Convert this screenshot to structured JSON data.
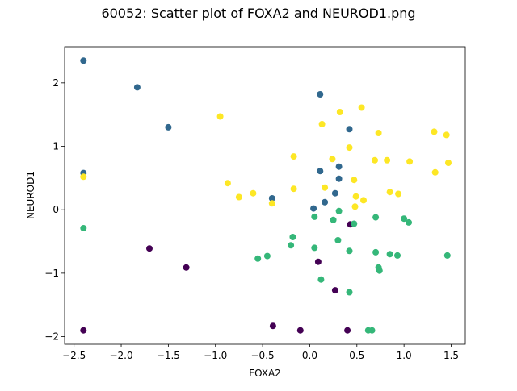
{
  "chart_data": {
    "type": "scatter",
    "title": "60052: Scatter plot of FOXA2 and NEUROD1.png",
    "xlabel": "FOXA2",
    "ylabel": "NEUROD1",
    "xlim": [
      -2.6,
      1.65
    ],
    "ylim": [
      -2.12,
      2.57
    ],
    "xticks": [
      -2.5,
      -2.0,
      -1.5,
      -1.0,
      -0.5,
      0.0,
      0.5,
      1.0,
      1.5
    ],
    "xtick_labels": [
      "−2.5",
      "−2.0",
      "−1.5",
      "−1.0",
      "−0.5",
      "0.0",
      "0.5",
      "1.0",
      "1.5"
    ],
    "yticks": [
      -2,
      -1,
      0,
      1,
      2
    ],
    "ytick_labels": [
      "−2",
      "−1",
      "0",
      "1",
      "2"
    ],
    "grid": false,
    "legend": "none",
    "series": [
      {
        "color": "#440154",
        "points": [
          [
            -2.4,
            -1.9
          ],
          [
            -1.7,
            -0.61
          ],
          [
            -1.31,
            -0.91
          ],
          [
            -0.39,
            -1.83
          ],
          [
            -0.1,
            -1.9
          ],
          [
            0.09,
            -0.82
          ],
          [
            0.27,
            -1.27
          ],
          [
            0.43,
            -0.23
          ],
          [
            0.4,
            -1.9
          ]
        ]
      },
      {
        "color": "#31688e",
        "points": [
          [
            -2.4,
            2.35
          ],
          [
            -1.83,
            1.93
          ],
          [
            -1.5,
            1.3
          ],
          [
            -2.4,
            0.58
          ],
          [
            0.11,
            1.82
          ],
          [
            0.42,
            1.27
          ],
          [
            0.11,
            0.61
          ],
          [
            0.31,
            0.68
          ],
          [
            0.31,
            0.49
          ],
          [
            0.27,
            0.26
          ],
          [
            0.16,
            0.12
          ],
          [
            0.04,
            0.02
          ],
          [
            -0.4,
            0.18
          ]
        ]
      },
      {
        "color": "#35b779",
        "points": [
          [
            -2.4,
            -0.29
          ],
          [
            -0.18,
            -0.43
          ],
          [
            -0.2,
            -0.56
          ],
          [
            -0.45,
            -0.73
          ],
          [
            -0.55,
            -0.77
          ],
          [
            0.05,
            -0.6
          ],
          [
            0.12,
            -1.1
          ],
          [
            0.31,
            -0.02
          ],
          [
            0.25,
            -0.16
          ],
          [
            0.47,
            -0.22
          ],
          [
            0.3,
            -0.48
          ],
          [
            0.42,
            -0.65
          ],
          [
            0.7,
            -0.12
          ],
          [
            0.7,
            -0.67
          ],
          [
            0.73,
            -0.91
          ],
          [
            0.74,
            -0.96
          ],
          [
            0.85,
            -0.7
          ],
          [
            0.93,
            -0.72
          ],
          [
            1.0,
            -0.14
          ],
          [
            1.05,
            -0.2
          ],
          [
            1.46,
            -0.72
          ],
          [
            0.42,
            -1.3
          ],
          [
            0.62,
            -1.9
          ],
          [
            0.66,
            -1.9
          ],
          [
            0.05,
            -0.11
          ]
        ]
      },
      {
        "color": "#fde725",
        "points": [
          [
            -2.4,
            0.52
          ],
          [
            -0.95,
            1.47
          ],
          [
            -0.87,
            0.42
          ],
          [
            -0.75,
            0.2
          ],
          [
            -0.6,
            0.26
          ],
          [
            -0.4,
            0.1
          ],
          [
            -0.17,
            0.84
          ],
          [
            -0.17,
            0.33
          ],
          [
            0.13,
            1.35
          ],
          [
            0.32,
            1.54
          ],
          [
            0.55,
            1.61
          ],
          [
            0.73,
            1.21
          ],
          [
            1.32,
            1.23
          ],
          [
            1.45,
            1.18
          ],
          [
            0.42,
            0.98
          ],
          [
            0.24,
            0.8
          ],
          [
            0.47,
            0.47
          ],
          [
            0.69,
            0.78
          ],
          [
            0.82,
            0.78
          ],
          [
            1.06,
            0.76
          ],
          [
            1.33,
            0.59
          ],
          [
            1.47,
            0.74
          ],
          [
            0.16,
            0.35
          ],
          [
            0.49,
            0.21
          ],
          [
            0.57,
            0.15
          ],
          [
            0.85,
            0.28
          ],
          [
            0.94,
            0.25
          ],
          [
            0.48,
            0.05
          ]
        ]
      }
    ]
  }
}
